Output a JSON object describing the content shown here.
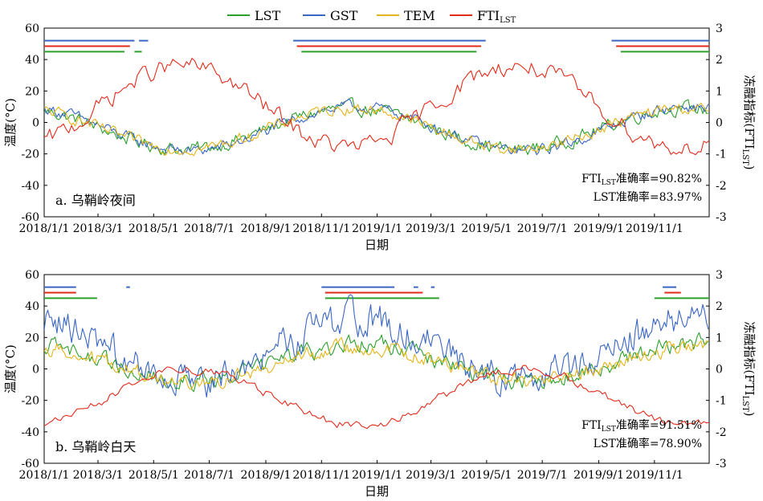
{
  "legend": {
    "items": [
      {
        "label": "LST",
        "color": "#2ca02c"
      },
      {
        "label": "GST",
        "color": "#3a66c4"
      },
      {
        "label": "TEM",
        "color": "#e3b51b"
      },
      {
        "label": "FTI",
        "sub": "LST",
        "color": "#e32b1b"
      }
    ]
  },
  "chart_data": [
    {
      "type": "line",
      "panel_label": "a. 乌鞘岭夜间",
      "xlabel": "日期",
      "ylabel": "温度(°C)",
      "ylabel_right": "冻融指标(FTI",
      "ylabel_right_sub": "LST",
      "ylabel_right_close": ")",
      "x_range": [
        "2018-01-01",
        "2019-12-31"
      ],
      "x_ticks": [
        "2018/1/1",
        "2018/3/1",
        "2018/5/1",
        "2018/7/1",
        "2018/9/1",
        "2018/11/1",
        "2019/1/1",
        "2019/3/1",
        "2019/5/1",
        "2019/7/1",
        "2019/9/1",
        "2019/11/1"
      ],
      "ylim": [
        -60,
        60
      ],
      "y_ticks": [
        60,
        40,
        20,
        0,
        -20,
        -40,
        -60
      ],
      "ylim_right": [
        -3,
        3
      ],
      "y_ticks_right": [
        3,
        2,
        1,
        0,
        -1,
        -2,
        -3
      ],
      "accuracy": {
        "fti_prefix": "FTI",
        "fti_sub": "LST",
        "fti_text": "准确率=90.82%",
        "lst_text": "LST准确率=83.97%"
      },
      "series": [
        {
          "name": "LST",
          "color": "#2ca02c",
          "axis": "left",
          "amp": 13,
          "mean": -4,
          "noise": 3.5,
          "phase": -120
        },
        {
          "name": "GST",
          "color": "#3a66c4",
          "axis": "left",
          "amp": 14,
          "mean": -4,
          "noise": 3.0,
          "phase": -115
        },
        {
          "name": "TEM",
          "color": "#e3b51b",
          "axis": "left",
          "amp": 13,
          "mean": -4,
          "noise": 3.0,
          "phase": -120
        },
        {
          "name": "FTI",
          "color": "#e32b1b",
          "axis": "right",
          "amp": 1.3,
          "mean": 0.5,
          "noise": 0.25,
          "phase": 60
        }
      ],
      "frozen_bars": [
        {
          "color": "#3a66c4",
          "y": 52,
          "ranges": [
            [
              "2018-01-01",
              "2018-04-10"
            ],
            [
              "2018-04-15",
              "2018-04-25"
            ],
            [
              "2018-10-01",
              "2019-04-30"
            ],
            [
              "2019-09-15",
              "2019-12-31"
            ]
          ]
        },
        {
          "color": "#e32b1b",
          "y": 48.5,
          "ranges": [
            [
              "2018-01-01",
              "2018-04-05"
            ],
            [
              "2018-10-05",
              "2019-04-25"
            ],
            [
              "2019-09-20",
              "2019-12-31"
            ]
          ]
        },
        {
          "color": "#2ca02c",
          "y": 45,
          "ranges": [
            [
              "2018-01-01",
              "2018-03-30"
            ],
            [
              "2018-04-10",
              "2018-04-18"
            ],
            [
              "2018-10-10",
              "2019-04-20"
            ],
            [
              "2019-09-25",
              "2019-12-31"
            ]
          ]
        }
      ]
    },
    {
      "type": "line",
      "panel_label": "b. 乌鞘岭白天",
      "xlabel": "日期",
      "ylabel": "温度(°C)",
      "ylabel_right": "冻融指标(FTI",
      "ylabel_right_sub": "LST",
      "ylabel_right_close": ")",
      "x_range": [
        "2018-01-01",
        "2019-12-31"
      ],
      "x_ticks": [
        "2018/1/1",
        "2018/3/1",
        "2018/5/1",
        "2018/7/1",
        "2018/9/1",
        "2018/11/1",
        "2019/1/1",
        "2019/3/1",
        "2019/5/1",
        "2019/7/1",
        "2019/9/1",
        "2019/11/1"
      ],
      "ylim": [
        -60,
        60
      ],
      "y_ticks": [
        60,
        40,
        20,
        0,
        -20,
        -40,
        -60
      ],
      "ylim_right": [
        -3,
        3
      ],
      "y_ticks_right": [
        3,
        2,
        1,
        0,
        -1,
        -2,
        -3
      ],
      "accuracy": {
        "fti_prefix": "FTI",
        "fti_sub": "LST",
        "fti_text": "准确率=91.51%",
        "lst_text": "LST准确率=78.90%"
      },
      "series": [
        {
          "name": "LST",
          "color": "#2ca02c",
          "axis": "left",
          "amp": 12,
          "mean": 4,
          "noise": 4.5,
          "phase": -110
        },
        {
          "name": "GST",
          "color": "#3a66c4",
          "axis": "left",
          "amp": 20,
          "mean": 12,
          "noise": 9.0,
          "phase": -110
        },
        {
          "name": "TEM",
          "color": "#e3b51b",
          "axis": "left",
          "amp": 11,
          "mean": 3,
          "noise": 4.0,
          "phase": -110
        },
        {
          "name": "FTI",
          "color": "#e32b1b",
          "axis": "right",
          "amp": 0.9,
          "mean": -0.9,
          "noise": 0.12,
          "phase": 70
        }
      ],
      "frozen_bars": [
        {
          "color": "#3a66c4",
          "y": 52,
          "ranges": [
            [
              "2018-01-01",
              "2018-02-05"
            ],
            [
              "2018-04-01",
              "2018-04-05"
            ],
            [
              "2018-11-01",
              "2019-01-20"
            ],
            [
              "2019-02-10",
              "2019-02-15"
            ],
            [
              "2019-03-01",
              "2019-03-05"
            ],
            [
              "2019-11-10",
              "2019-11-25"
            ]
          ]
        },
        {
          "color": "#e32b1b",
          "y": 48.5,
          "ranges": [
            [
              "2018-01-01",
              "2018-02-05"
            ],
            [
              "2018-11-05",
              "2019-02-20"
            ],
            [
              "2019-11-12",
              "2019-11-30"
            ]
          ]
        },
        {
          "color": "#2ca02c",
          "y": 45,
          "ranges": [
            [
              "2018-01-01",
              "2018-02-28"
            ],
            [
              "2018-11-05",
              "2019-03-10"
            ],
            [
              "2019-11-01",
              "2019-12-31"
            ]
          ]
        }
      ]
    }
  ]
}
